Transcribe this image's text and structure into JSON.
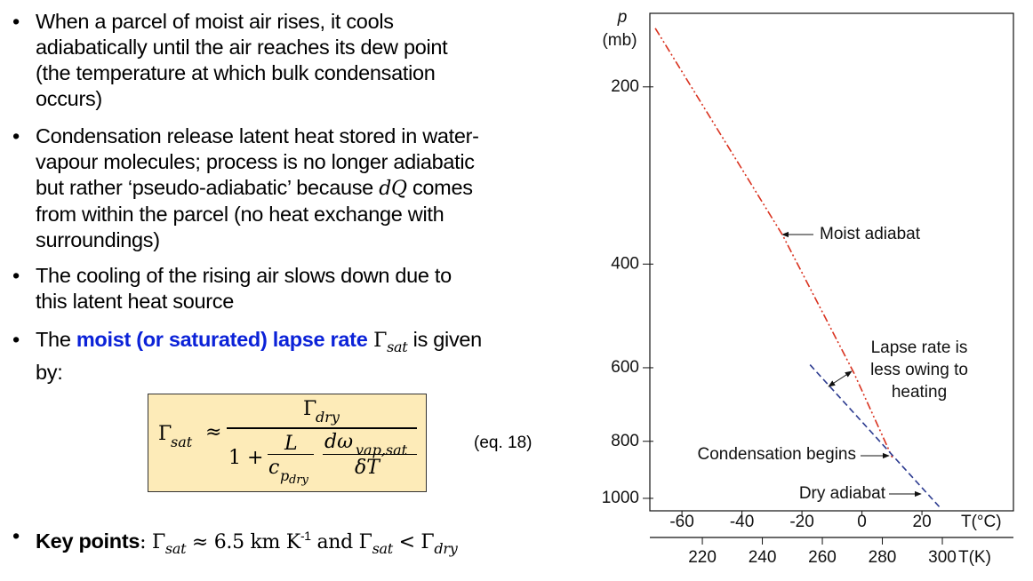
{
  "bullets": [
    [
      "When a parcel of moist air rises, it cools",
      "adiabatically until the air reaches its dew point",
      "(the temperature at which bulk condensation",
      "occurs)"
    ],
    [
      "Condensation release latent heat stored in water-",
      "vapour molecules; process is no longer adiabatic",
      "but rather ‘pseudo-adiabatic’ because ",
      "dQ",
      " comes",
      "from within the parcel (no heat exchange with",
      "surroundings)"
    ],
    [
      "The cooling of the rising air slows down due to",
      "this latent heat source"
    ],
    [
      "The ",
      "moist (or saturated) lapse rate",
      " Γ",
      "sat",
      " is given",
      "by:"
    ],
    [
      "Key points",
      ": Γ",
      "sat",
      " ≈ 6.5 km K",
      "-1",
      " and Γ",
      "sat",
      " < Γ",
      "dry"
    ]
  ],
  "equation": {
    "lhs": "Γ",
    "lhs_sub": "sat",
    "approx": "≈",
    "num": "Γ",
    "num_sub": "dry",
    "one_plus": "1 +",
    "L": "L",
    "c": "c",
    "c_sub": "p",
    "c_subsub": "dry",
    "domega": "dω",
    "domega_sub": "vap,sat",
    "dT": "δT",
    "label": "(eq. 18)"
  },
  "chart_data": {
    "type": "line",
    "y_label": "p",
    "y_unit": "(mb)",
    "x_label": "T(°C)",
    "x2_label": "T(K)",
    "log_y": true,
    "ylim": [
      1050,
      150
    ],
    "yticks": [
      200,
      400,
      600,
      800,
      1000
    ],
    "xlim": [
      -70.7,
      50.5
    ],
    "xticks": [
      -60,
      -40,
      -20,
      0,
      20
    ],
    "x2lim": [
      202.5,
      323.7
    ],
    "x2ticks": [
      220,
      240,
      260,
      280,
      300
    ],
    "series": [
      {
        "name": "Moist adiabat",
        "color": "#d9321f",
        "x": [
          -68.9,
          -26.5,
          -2.7,
          10.1
        ],
        "values": [
          159,
          357,
          612,
          852
        ]
      },
      {
        "name": "Dry adiabat",
        "color": "#2b3a8f",
        "x": [
          -17.3,
          26.2
        ],
        "values": [
          593,
          1039
        ]
      }
    ],
    "annotations": [
      "Moist adiabat",
      "Lapse rate is",
      "less owing to",
      "heating",
      "Condensation begins",
      "Dry adiabat"
    ]
  }
}
